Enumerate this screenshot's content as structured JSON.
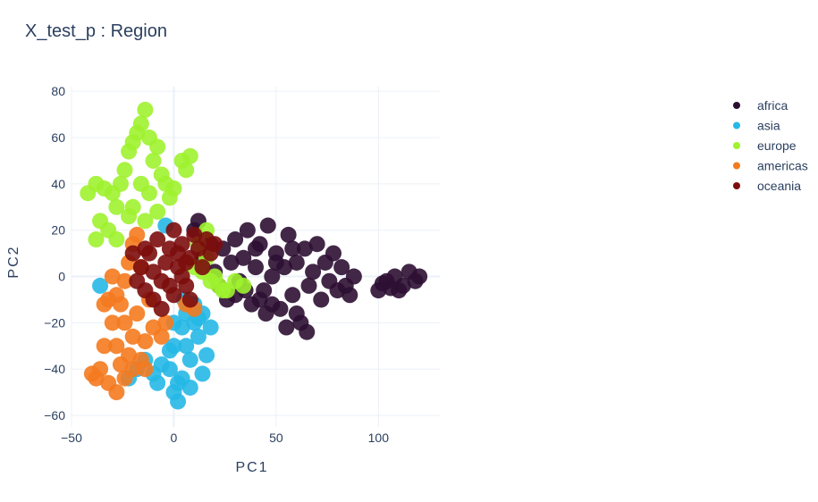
{
  "chart_data": {
    "type": "scatter",
    "title": "X_test_p : Region",
    "xlabel": "PC1",
    "ylabel": "PC2",
    "xlim": [
      -50,
      130
    ],
    "ylim": [
      -65,
      82
    ],
    "xticks": [
      -50,
      0,
      50,
      100
    ],
    "yticks": [
      -60,
      -40,
      -20,
      0,
      20,
      40,
      60,
      80
    ],
    "xtick_labels": [
      "−50",
      "0",
      "50",
      "100"
    ],
    "ytick_labels": [
      "−60",
      "−40",
      "−20",
      "0",
      "20",
      "40",
      "60",
      "80"
    ],
    "grid": true,
    "legend_position": "top-right",
    "series": [
      {
        "name": "africa",
        "color": "#2d0f33",
        "points": [
          [
            10,
            20
          ],
          [
            12,
            24
          ],
          [
            14,
            8
          ],
          [
            18,
            14
          ],
          [
            20,
            2
          ],
          [
            22,
            -4
          ],
          [
            24,
            12
          ],
          [
            26,
            -10
          ],
          [
            28,
            6
          ],
          [
            30,
            16
          ],
          [
            32,
            -2
          ],
          [
            34,
            8
          ],
          [
            36,
            20
          ],
          [
            38,
            -12
          ],
          [
            40,
            4
          ],
          [
            42,
            14
          ],
          [
            44,
            -6
          ],
          [
            46,
            22
          ],
          [
            48,
            0
          ],
          [
            50,
            10
          ],
          [
            52,
            -14
          ],
          [
            54,
            4
          ],
          [
            56,
            18
          ],
          [
            58,
            -8
          ],
          [
            60,
            6
          ],
          [
            62,
            -20
          ],
          [
            64,
            12
          ],
          [
            66,
            -4
          ],
          [
            68,
            2
          ],
          [
            70,
            14
          ],
          [
            72,
            -10
          ],
          [
            74,
            6
          ],
          [
            76,
            -2
          ],
          [
            78,
            10
          ],
          [
            80,
            -6
          ],
          [
            82,
            4
          ],
          [
            84,
            -4
          ],
          [
            86,
            -8
          ],
          [
            88,
            0
          ],
          [
            35,
            -6
          ],
          [
            45,
            -16
          ],
          [
            55,
            -22
          ],
          [
            65,
            -24
          ],
          [
            42,
            -10
          ],
          [
            60,
            -16
          ],
          [
            50,
            6
          ],
          [
            40,
            12
          ],
          [
            30,
            -8
          ],
          [
            58,
            12
          ],
          [
            48,
            -12
          ],
          [
            100,
            -6
          ],
          [
            104,
            -2
          ],
          [
            108,
            0
          ],
          [
            112,
            -4
          ],
          [
            115,
            2
          ],
          [
            118,
            -2
          ],
          [
            120,
            0
          ],
          [
            106,
            -5
          ],
          [
            110,
            -6
          ],
          [
            102,
            -3
          ]
        ]
      },
      {
        "name": "asia",
        "color": "#26b8e6",
        "points": [
          [
            -2,
            -40
          ],
          [
            0,
            -50
          ],
          [
            2,
            -54
          ],
          [
            4,
            -44
          ],
          [
            6,
            -30
          ],
          [
            8,
            -36
          ],
          [
            10,
            -20
          ],
          [
            12,
            -26
          ],
          [
            14,
            -42
          ],
          [
            16,
            -34
          ],
          [
            -6,
            -38
          ],
          [
            -10,
            -42
          ],
          [
            -14,
            -36
          ],
          [
            -18,
            -40
          ],
          [
            -22,
            -44
          ],
          [
            0,
            -30
          ],
          [
            4,
            -22
          ],
          [
            6,
            -16
          ],
          [
            10,
            -12
          ],
          [
            12,
            -18
          ],
          [
            18,
            -22
          ],
          [
            -8,
            -46
          ],
          [
            2,
            -46
          ],
          [
            8,
            -48
          ],
          [
            -36,
            -4
          ],
          [
            -4,
            22
          ],
          [
            0,
            -20
          ],
          [
            5,
            -10
          ],
          [
            14,
            -16
          ],
          [
            -2,
            -32
          ]
        ]
      },
      {
        "name": "europe",
        "color": "#9ef22f",
        "points": [
          [
            -26,
            40
          ],
          [
            -24,
            46
          ],
          [
            -22,
            54
          ],
          [
            -20,
            58
          ],
          [
            -18,
            62
          ],
          [
            -16,
            66
          ],
          [
            -14,
            72
          ],
          [
            -12,
            60
          ],
          [
            -10,
            50
          ],
          [
            -8,
            56
          ],
          [
            -6,
            44
          ],
          [
            -4,
            40
          ],
          [
            -2,
            34
          ],
          [
            -28,
            30
          ],
          [
            -30,
            36
          ],
          [
            -34,
            38
          ],
          [
            -38,
            40
          ],
          [
            -42,
            36
          ],
          [
            -36,
            24
          ],
          [
            -32,
            20
          ],
          [
            -20,
            30
          ],
          [
            -14,
            24
          ],
          [
            -8,
            28
          ],
          [
            0,
            38
          ],
          [
            4,
            50
          ],
          [
            6,
            46
          ],
          [
            8,
            52
          ],
          [
            -16,
            40
          ],
          [
            -22,
            26
          ],
          [
            -12,
            36
          ],
          [
            10,
            4
          ],
          [
            14,
            2
          ],
          [
            18,
            -2
          ],
          [
            22,
            -4
          ],
          [
            26,
            -6
          ],
          [
            30,
            -2
          ],
          [
            34,
            -4
          ],
          [
            16,
            8
          ],
          [
            20,
            0
          ],
          [
            24,
            -6
          ],
          [
            12,
            14
          ],
          [
            16,
            20
          ],
          [
            -38,
            16
          ],
          [
            -28,
            16
          ]
        ]
      },
      {
        "name": "americas",
        "color": "#f47a1f",
        "points": [
          [
            -32,
            -10
          ],
          [
            -30,
            -20
          ],
          [
            -28,
            -30
          ],
          [
            -26,
            -38
          ],
          [
            -24,
            -44
          ],
          [
            -22,
            -34
          ],
          [
            -20,
            -26
          ],
          [
            -18,
            -16
          ],
          [
            -16,
            -36
          ],
          [
            -14,
            -28
          ],
          [
            -34,
            -30
          ],
          [
            -36,
            -40
          ],
          [
            -38,
            -44
          ],
          [
            -40,
            -42
          ],
          [
            -32,
            -46
          ],
          [
            -28,
            -50
          ],
          [
            -26,
            -12
          ],
          [
            -24,
            -2
          ],
          [
            -22,
            6
          ],
          [
            -20,
            14
          ],
          [
            -18,
            18
          ],
          [
            -30,
            0
          ],
          [
            -34,
            -12
          ],
          [
            -10,
            -22
          ],
          [
            -6,
            -26
          ],
          [
            -4,
            -20
          ],
          [
            -12,
            -10
          ],
          [
            -16,
            4
          ],
          [
            10,
            -14
          ],
          [
            6,
            -12
          ],
          [
            -28,
            -8
          ],
          [
            -20,
            -40
          ],
          [
            -14,
            -40
          ],
          [
            -24,
            -20
          ]
        ]
      },
      {
        "name": "oceania",
        "color": "#7c0d0d",
        "points": [
          [
            -16,
            4
          ],
          [
            -14,
            -6
          ],
          [
            -12,
            10
          ],
          [
            -10,
            -10
          ],
          [
            -8,
            16
          ],
          [
            -6,
            -2
          ],
          [
            -4,
            6
          ],
          [
            -2,
            12
          ],
          [
            0,
            -8
          ],
          [
            2,
            4
          ],
          [
            4,
            14
          ],
          [
            6,
            -4
          ],
          [
            8,
            8
          ],
          [
            10,
            18
          ],
          [
            12,
            12
          ],
          [
            14,
            4
          ],
          [
            16,
            16
          ],
          [
            -18,
            -2
          ],
          [
            -10,
            2
          ],
          [
            -6,
            -14
          ],
          [
            0,
            20
          ],
          [
            4,
            0
          ],
          [
            -14,
            12
          ],
          [
            -2,
            -4
          ],
          [
            6,
            6
          ],
          [
            18,
            10
          ],
          [
            20,
            14
          ],
          [
            -20,
            10
          ],
          [
            8,
            -10
          ],
          [
            2,
            10
          ]
        ]
      }
    ]
  }
}
